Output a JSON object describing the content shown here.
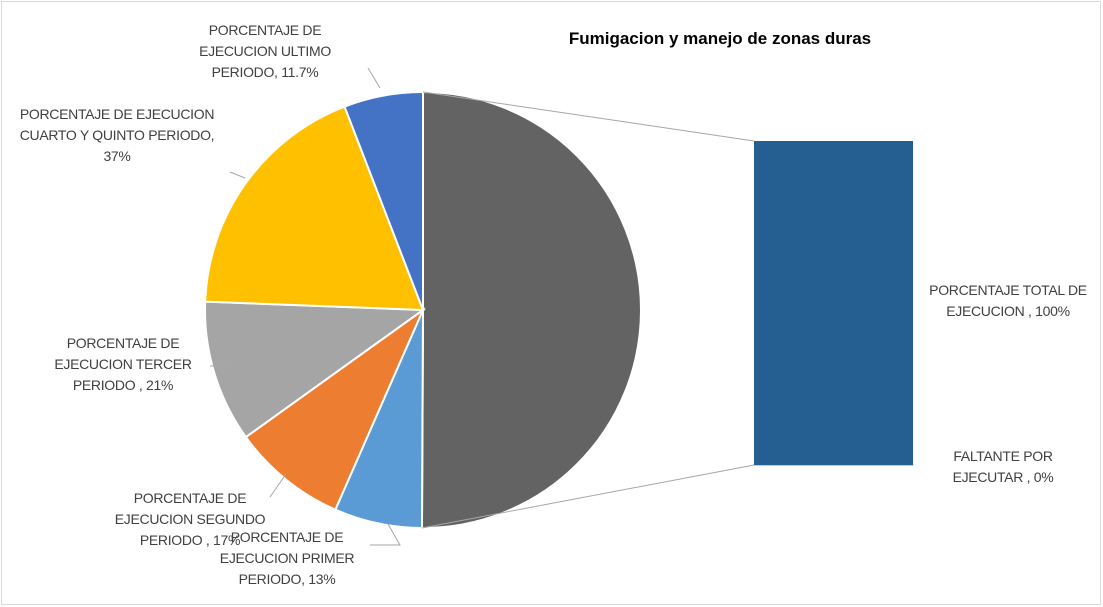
{
  "chart_data": {
    "type": "pie_of_bar",
    "title": "Fumigacion y manejo de zonas duras",
    "categories": [
      "PORCENTAJE DE EJECUCION PRIMER PERIODO",
      "PORCENTAJE DE EJECUCION SEGUNDO PERIODO",
      "PORCENTAJE DE EJECUCION TERCER PERIODO",
      "PORCENTAJE DE EJECUCION CUARTO Y QUINTO PERIODO",
      "PORCENTAJE DE EJECUCION ULTIMO PERIODO",
      "PORCENTAJE TOTAL DE EJECUCION",
      "FALTANTE POR EJECUTAR"
    ],
    "values": [
      13,
      17,
      21,
      37,
      11.7,
      100,
      0
    ],
    "value_labels": [
      "PORCENTAJE DE EJECUCION PRIMER PERIODO, 13%",
      "PORCENTAJE DE EJECUCION SEGUNDO PERIODO , 17%",
      "PORCENTAJE DE EJECUCION TERCER PERIODO , 21%",
      "PORCENTAJE DE EJECUCION CUARTO Y QUINTO PERIODO, 37%",
      "PORCENTAJE DE EJECUCION ULTIMO PERIODO, 11.7%",
      "PORCENTAJE TOTAL DE EJECUCION , 100%",
      "FALTANTE POR EJECUTAR , 0%"
    ],
    "colors": [
      "#5b9bd5",
      "#ed7d31",
      "#a5a5a5",
      "#ffc000",
      "#4472c4",
      "#255e91",
      "#ed7d31"
    ],
    "other_color": "#636363",
    "secondary_count": 2
  }
}
